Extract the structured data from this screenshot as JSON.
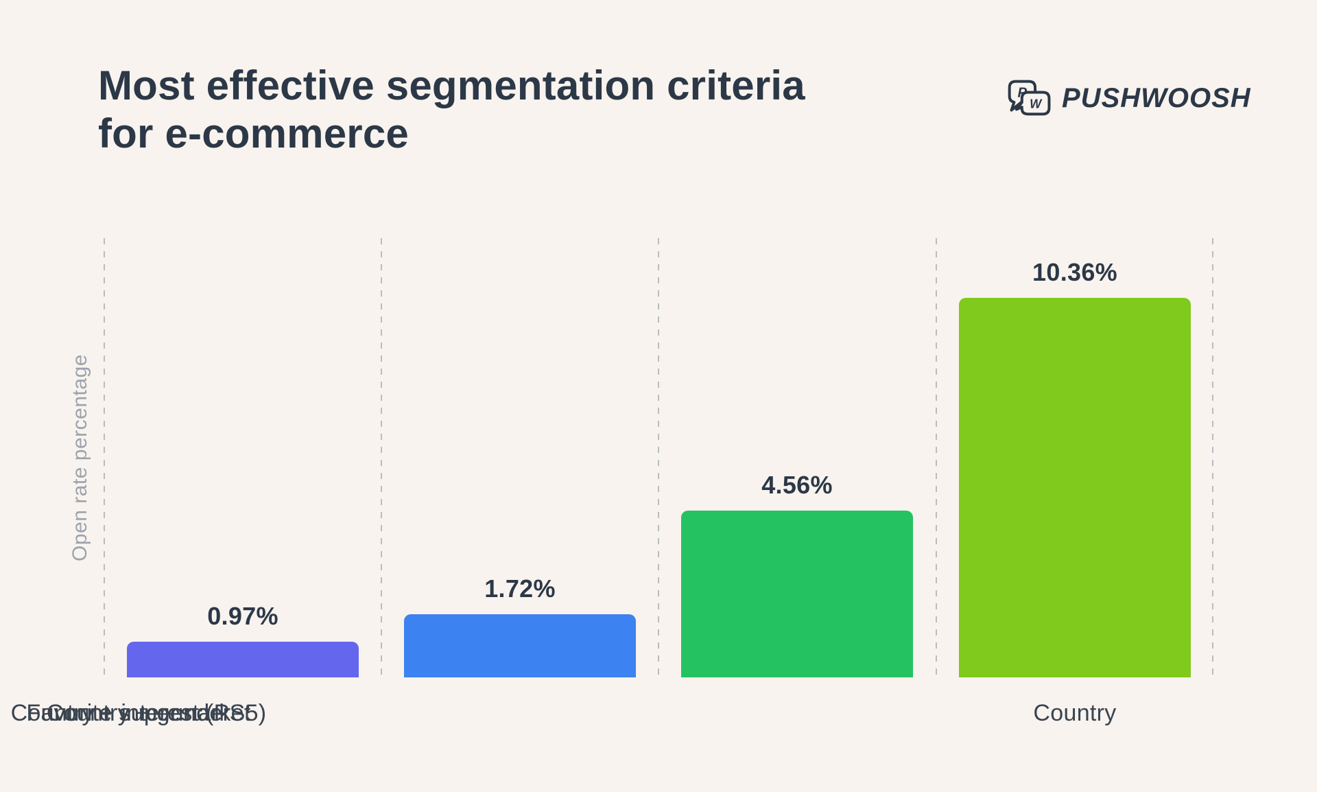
{
  "header": {
    "title_line1": "Most effective segmentation criteria",
    "title_line2": "for e-commerce",
    "brand": "PUSHWOOSH",
    "logo_letters": [
      "P",
      "W"
    ]
  },
  "chart_data": {
    "type": "bar",
    "title": "Most effective segmentation criteria for e-commerce",
    "xlabel": "",
    "ylabel": "Open rate percentage",
    "unit": "%",
    "categories": [
      "Country",
      "Country + gender",
      "Favorite supermarket",
      "Country + interest (PS5)"
    ],
    "values": [
      0.97,
      1.72,
      4.56,
      10.36
    ],
    "value_labels": [
      "0.97%",
      "1.72%",
      "4.56%",
      "10.36%"
    ],
    "bar_colors": [
      "#6467EE",
      "#3C82F1",
      "#25C262",
      "#80C91D"
    ],
    "ylim": [
      0,
      12
    ],
    "grid": "vertical-dashed",
    "legend": "none"
  },
  "style": {
    "background": "#F8F3EE",
    "ink": "#2C3847",
    "category_label_color": "#3A4450",
    "axis_label_color": "#9CA3AD",
    "grid_color": "#B8BCC3"
  }
}
